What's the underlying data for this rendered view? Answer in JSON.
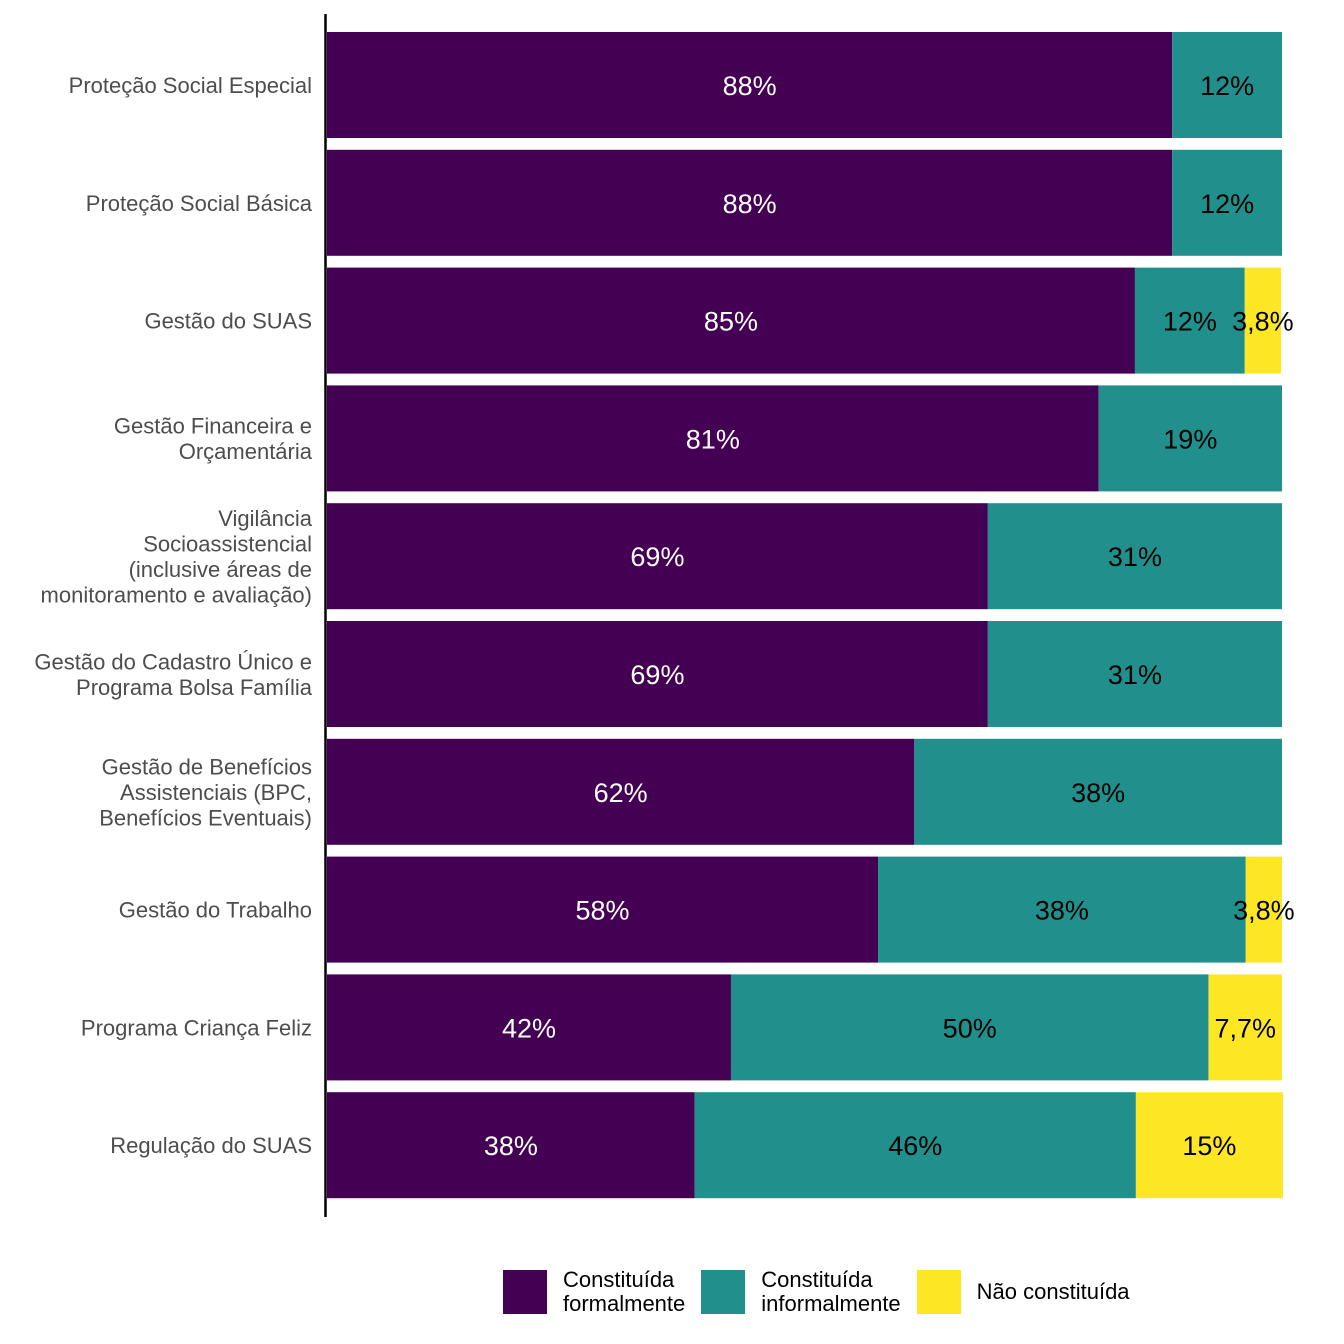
{
  "chart_data": {
    "type": "bar",
    "orientation": "horizontal",
    "stacked": true,
    "normalized": true,
    "categories": [
      "Proteção Social Especial",
      "Proteção Social Básica",
      "Gestão do SUAS",
      "Gestão Financeira e\nOrçamentária",
      "Vigilância\nSocioassistencial\n(inclusive áreas de\nmonitoramento e avaliação)",
      "Gestão do Cadastro Único e\nPrograma Bolsa Família",
      "Gestão de Benefícios\nAssistenciais (BPC,\nBenefícios Eventuais)",
      "Gestão do Trabalho",
      "Programa Criança Feliz",
      "Regulação do SUAS"
    ],
    "series": [
      {
        "name": "Constituída\nformalmente",
        "color": "#440154",
        "text_color": "#ffffff",
        "values": [
          88.5,
          88.5,
          84.6,
          80.8,
          69.2,
          69.2,
          61.5,
          57.7,
          42.3,
          38.5
        ],
        "labels": [
          "88%",
          "88%",
          "85%",
          "81%",
          "69%",
          "69%",
          "62%",
          "58%",
          "42%",
          "38%"
        ]
      },
      {
        "name": "Constituída\ninformalmente",
        "color": "#21908C",
        "text_color": "#000000",
        "values": [
          11.5,
          11.5,
          11.5,
          19.2,
          30.8,
          30.8,
          38.5,
          38.5,
          50.0,
          46.2
        ],
        "labels": [
          "12%",
          "12%",
          "12%",
          "19%",
          "31%",
          "31%",
          "38%",
          "38%",
          "50%",
          "46%"
        ]
      },
      {
        "name": "Não constituída",
        "color": "#FDE725",
        "text_color": "#000000",
        "values": [
          0,
          0,
          3.8,
          0,
          0,
          0,
          0,
          3.8,
          7.7,
          15.4
        ],
        "labels": [
          "",
          "",
          "3,8%",
          "",
          "",
          "",
          "",
          "3,8%",
          "7,7%",
          "15%"
        ]
      }
    ],
    "xlim": [
      0,
      100
    ],
    "grid": false,
    "legend_position": "bottom"
  }
}
